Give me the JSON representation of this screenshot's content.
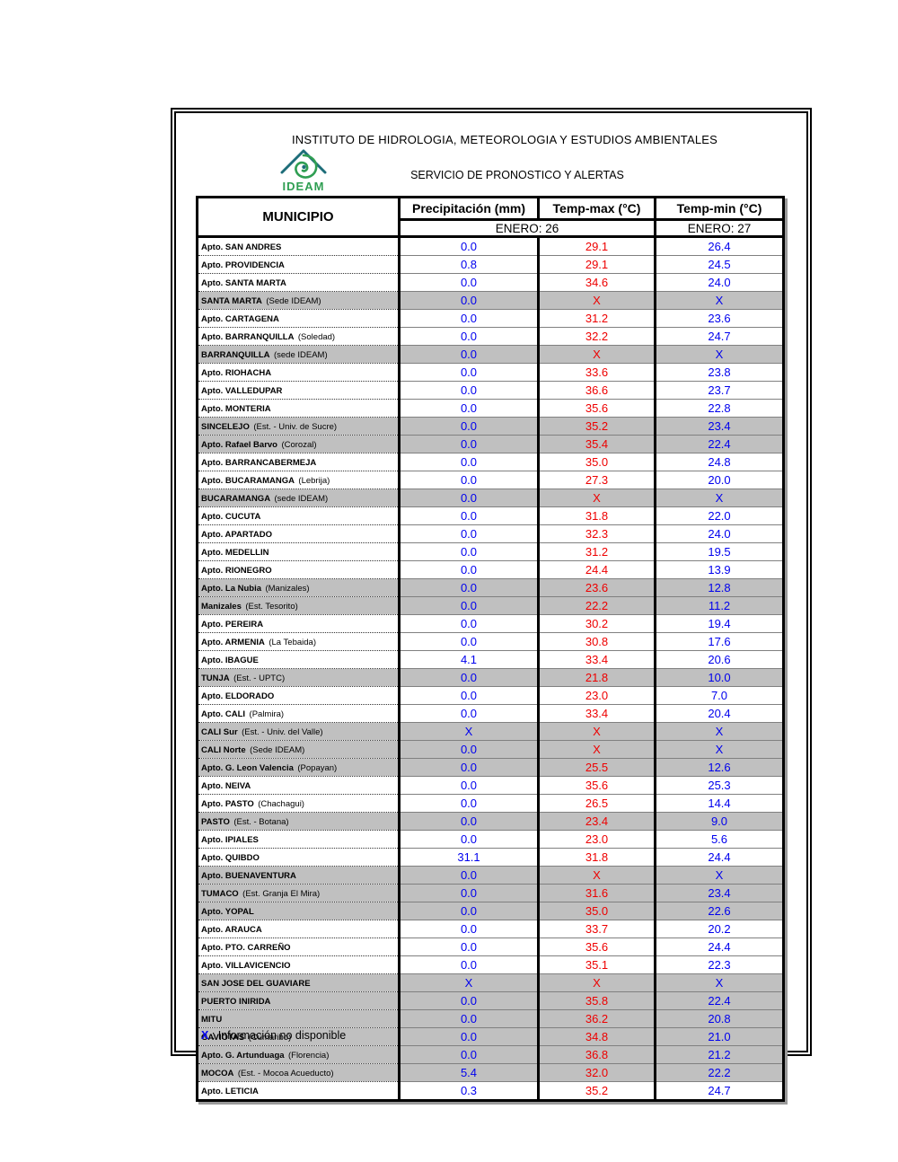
{
  "header": {
    "institute_title": "INSTITUTO DE HIDROLOGIA, METEOROLOGIA Y ESTUDIOS AMBIENTALES",
    "service_title": "SERVICIO DE PRONOSTICO Y ALERTAS",
    "logo_label": "IDEAM"
  },
  "table": {
    "columns": [
      "MUNICIPIO",
      "Precipitación (mm)",
      "Temp-max (°C)",
      "Temp-min (°C)"
    ],
    "date_span_precip_tmax": "ENERO: 26",
    "date_tmin": "ENERO: 27",
    "rows": [
      {
        "name": "Apto. SAN ANDRES",
        "note": "",
        "precip": "0.0",
        "tmax": "29.1",
        "tmin": "26.4",
        "shaded": false
      },
      {
        "name": "Apto. PROVIDENCIA",
        "note": "",
        "precip": "0.8",
        "tmax": "29.1",
        "tmin": "24.5",
        "shaded": false
      },
      {
        "name": "Apto. SANTA MARTA",
        "note": "",
        "precip": "0.0",
        "tmax": "34.6",
        "tmin": "24.0",
        "shaded": false
      },
      {
        "name": "SANTA MARTA",
        "note": "(Sede IDEAM)",
        "precip": "0.0",
        "tmax": "X",
        "tmin": "X",
        "shaded": true
      },
      {
        "name": "Apto. CARTAGENA",
        "note": "",
        "precip": "0.0",
        "tmax": "31.2",
        "tmin": "23.6",
        "shaded": false
      },
      {
        "name": "Apto. BARRANQUILLA",
        "note": "(Soledad)",
        "precip": "0.0",
        "tmax": "32.2",
        "tmin": "24.7",
        "shaded": false
      },
      {
        "name": "BARRANQUILLA",
        "note": "(sede IDEAM)",
        "precip": "0.0",
        "tmax": "X",
        "tmin": "X",
        "shaded": true
      },
      {
        "name": "Apto. RIOHACHA",
        "note": "",
        "precip": "0.0",
        "tmax": "33.6",
        "tmin": "23.8",
        "shaded": false
      },
      {
        "name": "Apto. VALLEDUPAR",
        "note": "",
        "precip": "0.0",
        "tmax": "36.6",
        "tmin": "23.7",
        "shaded": false
      },
      {
        "name": "Apto. MONTERIA",
        "note": "",
        "precip": "0.0",
        "tmax": "35.6",
        "tmin": "22.8",
        "shaded": false
      },
      {
        "name": "SINCELEJO",
        "note": "(Est. - Univ. de Sucre)",
        "precip": "0.0",
        "tmax": "35.2",
        "tmin": "23.4",
        "shaded": true
      },
      {
        "name": "Apto. Rafael Barvo",
        "note": "(Corozal)",
        "precip": "0.0",
        "tmax": "35.4",
        "tmin": "22.4",
        "shaded": true
      },
      {
        "name": "Apto. BARRANCABERMEJA",
        "note": "",
        "precip": "0.0",
        "tmax": "35.0",
        "tmin": "24.8",
        "shaded": false
      },
      {
        "name": "Apto. BUCARAMANGA",
        "note": "(Lebrija)",
        "precip": "0.0",
        "tmax": "27.3",
        "tmin": "20.0",
        "shaded": false
      },
      {
        "name": "BUCARAMANGA",
        "note": "(sede IDEAM)",
        "precip": "0.0",
        "tmax": "X",
        "tmin": "X",
        "shaded": true
      },
      {
        "name": "Apto. CUCUTA",
        "note": "",
        "precip": "0.0",
        "tmax": "31.8",
        "tmin": "22.0",
        "shaded": false
      },
      {
        "name": "Apto. APARTADO",
        "note": "",
        "precip": "0.0",
        "tmax": "32.3",
        "tmin": "24.0",
        "shaded": false
      },
      {
        "name": "Apto. MEDELLIN",
        "note": "",
        "precip": "0.0",
        "tmax": "31.2",
        "tmin": "19.5",
        "shaded": false
      },
      {
        "name": "Apto. RIONEGRO",
        "note": "",
        "precip": "0.0",
        "tmax": "24.4",
        "tmin": "13.9",
        "shaded": false
      },
      {
        "name": "Apto. La Nubia",
        "note": "(Manizales)",
        "precip": "0.0",
        "tmax": "23.6",
        "tmin": "12.8",
        "shaded": true
      },
      {
        "name": "Manizales",
        "note": "(Est. Tesorito)",
        "precip": "0.0",
        "tmax": "22.2",
        "tmin": "11.2",
        "shaded": true
      },
      {
        "name": "Apto. PEREIRA",
        "note": "",
        "precip": "0.0",
        "tmax": "30.2",
        "tmin": "19.4",
        "shaded": false
      },
      {
        "name": "Apto. ARMENIA",
        "note": "(La Tebaida)",
        "precip": "0.0",
        "tmax": "30.8",
        "tmin": "17.6",
        "shaded": false
      },
      {
        "name": "Apto. IBAGUE",
        "note": "",
        "precip": "4.1",
        "tmax": "33.4",
        "tmin": "20.6",
        "shaded": false
      },
      {
        "name": "TUNJA",
        "note": "(Est. - UPTC)",
        "precip": "0.0",
        "tmax": "21.8",
        "tmin": "10.0",
        "shaded": true
      },
      {
        "name": "Apto. ELDORADO",
        "note": "",
        "precip": "0.0",
        "tmax": "23.0",
        "tmin": "7.0",
        "shaded": false
      },
      {
        "name": "Apto. CALI",
        "note": "(Palmira)",
        "precip": "0.0",
        "tmax": "33.4",
        "tmin": "20.4",
        "shaded": false
      },
      {
        "name": "CALI Sur",
        "note": "(Est. - Univ. del Valle)",
        "precip": "X",
        "tmax": "X",
        "tmin": "X",
        "shaded": true
      },
      {
        "name": "CALI Norte",
        "note": "(Sede IDEAM)",
        "precip": "0.0",
        "tmax": "X",
        "tmin": "X",
        "shaded": true
      },
      {
        "name": "Apto. G. Leon Valencia",
        "note": "(Popayan)",
        "precip": "0.0",
        "tmax": "25.5",
        "tmin": "12.6",
        "shaded": true
      },
      {
        "name": "Apto. NEIVA",
        "note": "",
        "precip": "0.0",
        "tmax": "35.6",
        "tmin": "25.3",
        "shaded": false
      },
      {
        "name": "Apto. PASTO",
        "note": "(Chachagui)",
        "precip": "0.0",
        "tmax": "26.5",
        "tmin": "14.4",
        "shaded": false
      },
      {
        "name": "PASTO",
        "note": "(Est. - Botana)",
        "precip": "0.0",
        "tmax": "23.4",
        "tmin": "9.0",
        "shaded": true
      },
      {
        "name": "Apto. IPIALES",
        "note": "",
        "precip": "0.0",
        "tmax": "23.0",
        "tmin": "5.6",
        "shaded": false
      },
      {
        "name": "Apto. QUIBDO",
        "note": "",
        "precip": "31.1",
        "tmax": "31.8",
        "tmin": "24.4",
        "shaded": false
      },
      {
        "name": "Apto. BUENAVENTURA",
        "note": "",
        "precip": "0.0",
        "tmax": "X",
        "tmin": "X",
        "shaded": true
      },
      {
        "name": "TUMACO",
        "note": "(Est. Granja El Mira)",
        "precip": "0.0",
        "tmax": "31.6",
        "tmin": "23.4",
        "shaded": true
      },
      {
        "name": "Apto. YOPAL",
        "note": "",
        "precip": "0.0",
        "tmax": "35.0",
        "tmin": "22.6",
        "shaded": true
      },
      {
        "name": "Apto. ARAUCA",
        "note": "",
        "precip": "0.0",
        "tmax": "33.7",
        "tmin": "20.2",
        "shaded": false
      },
      {
        "name": "Apto. PTO.  CARREÑO",
        "note": "",
        "precip": "0.0",
        "tmax": "35.6",
        "tmin": "24.4",
        "shaded": false
      },
      {
        "name": "Apto. VILLAVICENCIO",
        "note": "",
        "precip": "0.0",
        "tmax": "35.1",
        "tmin": "22.3",
        "shaded": false
      },
      {
        "name": "SAN JOSE DEL GUAVIARE",
        "note": "",
        "precip": "X",
        "tmax": "X",
        "tmin": "X",
        "shaded": true
      },
      {
        "name": "PUERTO INIRIDA",
        "note": "",
        "precip": "0.0",
        "tmax": "35.8",
        "tmin": "22.4",
        "shaded": true
      },
      {
        "name": "MITU",
        "note": "",
        "precip": "0.0",
        "tmax": "36.2",
        "tmin": "20.8",
        "shaded": true
      },
      {
        "name": "GAVIOTAS",
        "note": "(Cumaribo)",
        "precip": "0.0",
        "tmax": "34.8",
        "tmin": "21.0",
        "shaded": true
      },
      {
        "name": "Apto. G. Artunduaga",
        "note": "(Florencia)",
        "precip": "0.0",
        "tmax": "36.8",
        "tmin": "21.2",
        "shaded": true
      },
      {
        "name": "MOCOA",
        "note": "(Est. - Mocoa Acueducto)",
        "precip": "5.4",
        "tmax": "32.0",
        "tmin": "22.2",
        "shaded": true
      },
      {
        "name": "Apto. LETICIA",
        "note": "",
        "precip": "0.3",
        "tmax": "35.2",
        "tmin": "24.7",
        "shaded": false
      }
    ]
  },
  "footnote": {
    "symbol": "X",
    "text": " : Información no disponible"
  },
  "colors": {
    "precipitation_text": "#0000ee",
    "temp_max_text": "#ee0000",
    "temp_min_text": "#0000ee",
    "shaded_row_bg": "#c0c0c0",
    "logo_green": "#2f9e52",
    "logo_teal": "#1d6d79"
  }
}
